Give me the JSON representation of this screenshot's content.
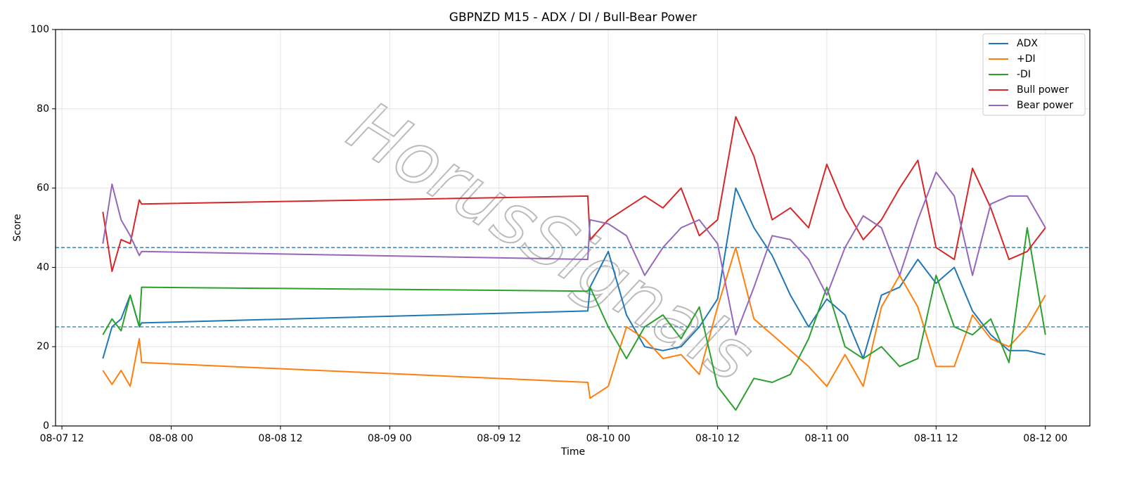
{
  "chart_data": {
    "type": "line",
    "title": "GBPNZD M15 - ADX / DI / Bull-Bear Power",
    "x_label": "Time",
    "y_label": "Score",
    "watermark": "HorusSignals",
    "x": [
      "08-07 16:30",
      "08-07 17:30",
      "08-07 18:30",
      "08-07 19:30",
      "08-07 20:30",
      "08-07 20:45",
      "08-09 21:45",
      "08-09 22:00",
      "08-10 00:00",
      "08-10 02:00",
      "08-10 04:00",
      "08-10 06:00",
      "08-10 08:00",
      "08-10 10:00",
      "08-10 12:00",
      "08-10 14:00",
      "08-10 16:00",
      "08-10 18:00",
      "08-10 20:00",
      "08-10 22:00",
      "08-11 00:00",
      "08-11 02:00",
      "08-11 04:00",
      "08-11 06:00",
      "08-11 08:00",
      "08-11 10:00",
      "08-11 12:00",
      "08-11 14:00",
      "08-11 16:00",
      "08-11 18:00",
      "08-11 20:00",
      "08-11 22:00",
      "08-12 00:00"
    ],
    "series": [
      {
        "name": "ADX",
        "color": "#1f77b4",
        "values": [
          17,
          25,
          27,
          33,
          25,
          26,
          29,
          35,
          44,
          28,
          20,
          19,
          20,
          25,
          32,
          60,
          50,
          43,
          33,
          25,
          32,
          28,
          17,
          33,
          35,
          42,
          36,
          40,
          29,
          23,
          19,
          19,
          18
        ]
      },
      {
        "name": "+DI",
        "color": "#ff7f0e",
        "values": [
          14,
          10.5,
          14,
          10,
          22,
          16,
          11,
          7,
          10,
          25,
          22,
          17,
          18,
          13,
          30,
          45,
          27,
          23,
          19,
          15,
          10,
          18,
          10,
          30,
          38,
          30,
          15,
          15,
          28,
          22,
          20,
          25,
          33
        ]
      },
      {
        "name": "-DI",
        "color": "#2ca02c",
        "values": [
          23,
          27,
          24,
          33,
          25,
          35,
          34,
          35,
          25,
          17,
          25,
          28,
          22,
          30,
          10,
          4,
          12,
          11,
          13,
          22,
          35,
          20,
          17,
          20,
          15,
          17,
          38,
          25,
          23,
          27,
          16,
          50,
          23
        ]
      },
      {
        "name": "Bull power",
        "color": "#d62728",
        "values": [
          54,
          39,
          47,
          46,
          57,
          56,
          58,
          47,
          52,
          55,
          58,
          55,
          60,
          48,
          52,
          78,
          68,
          52,
          55,
          50,
          66,
          55,
          47,
          52,
          60,
          67,
          45,
          42,
          65,
          55,
          42,
          44,
          50
        ]
      },
      {
        "name": "Bear power",
        "color": "#9467bd",
        "values": [
          46,
          61,
          52,
          48,
          43,
          44,
          42,
          52,
          51,
          48,
          38,
          45,
          50,
          52,
          46,
          23,
          35,
          48,
          47,
          42,
          33,
          45,
          53,
          50,
          38,
          52,
          64,
          58,
          38,
          56,
          58,
          58,
          50
        ]
      }
    ],
    "hlines": [
      25,
      45
    ],
    "hline_color": "#1f77b4",
    "xlim": [
      "08-07 11:18",
      "08-12 04:53"
    ],
    "xticks": [
      {
        "value": "08-07 12:00",
        "label": "08-07 12"
      },
      {
        "value": "08-08 00:00",
        "label": "08-08 00"
      },
      {
        "value": "08-08 12:00",
        "label": "08-08 12"
      },
      {
        "value": "08-09 00:00",
        "label": "08-09 00"
      },
      {
        "value": "08-09 12:00",
        "label": "08-09 12"
      },
      {
        "value": "08-10 00:00",
        "label": "08-10 00"
      },
      {
        "value": "08-10 12:00",
        "label": "08-10 12"
      },
      {
        "value": "08-11 00:00",
        "label": "08-11 00"
      },
      {
        "value": "08-11 12:00",
        "label": "08-11 12"
      },
      {
        "value": "08-12 00:00",
        "label": "08-12 00"
      }
    ],
    "ylim": [
      0,
      100
    ],
    "yticks": [
      0,
      20,
      40,
      60,
      80,
      100
    ],
    "grid": true,
    "legend": "upper right"
  }
}
